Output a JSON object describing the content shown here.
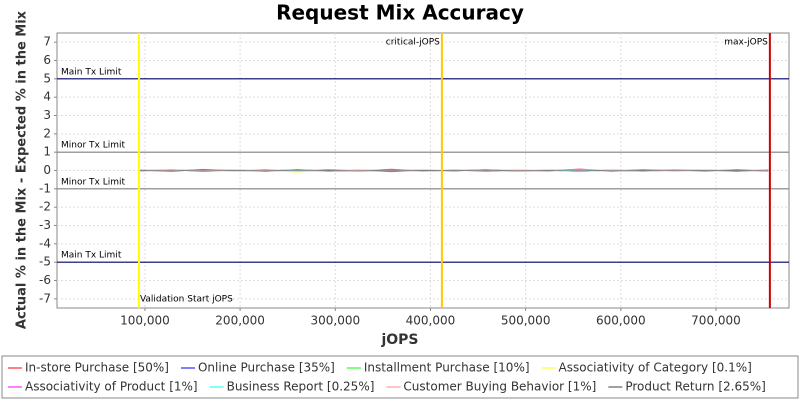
{
  "chart_data": {
    "type": "line",
    "title": "Request Mix Accuracy",
    "x_label": "jOPS",
    "y_label": "Actual % in the Mix - Expected % in the Mix",
    "xlim": [
      7600,
      776700
    ],
    "ylim": [
      -7.5,
      7.5
    ],
    "xticks": [
      {
        "value": 100000,
        "label": "100,000"
      },
      {
        "value": 200000,
        "label": "200,000"
      },
      {
        "value": 300000,
        "label": "300,000"
      },
      {
        "value": 400000,
        "label": "400,000"
      },
      {
        "value": 500000,
        "label": "500,000"
      },
      {
        "value": 600000,
        "label": "600,000"
      },
      {
        "value": 700000,
        "label": "700,000"
      }
    ],
    "yticks": [
      -7,
      -6,
      -5,
      -4,
      -3,
      -2,
      -1,
      0,
      1,
      2,
      3,
      4,
      5,
      6,
      7
    ],
    "grid": true,
    "hlines": [
      {
        "label": "Main Tx Limit",
        "value": 5,
        "color": "#000066"
      },
      {
        "label": "Minor Tx Limit",
        "value": 1,
        "color": "#808080"
      },
      {
        "label": "Minor Tx Limit",
        "value": -1,
        "color": "#808080"
      },
      {
        "label": "Main Tx Limit",
        "value": -5,
        "color": "#000066"
      }
    ],
    "vlines": [
      {
        "label": "Validation Start jOPS",
        "value": 93700,
        "color": "#ffff00"
      },
      {
        "label": "critical-jOPS",
        "value": 412000,
        "color": "#ffc800"
      },
      {
        "label": "max-jOPS",
        "value": 756600,
        "color": "#cc0000"
      }
    ],
    "x": [
      95000,
      128000,
      161000,
      194000,
      227000,
      260000,
      293000,
      326000,
      359000,
      392000,
      425000,
      458000,
      491000,
      524000,
      557000,
      590000,
      623000,
      656000,
      689000,
      722000,
      755000
    ],
    "series": [
      {
        "name": "In-store Purchase [50%]",
        "color": "#ff5555",
        "values": [
          0.02,
          -0.05,
          0.06,
          -0.03,
          0.04,
          -0.06,
          0.05,
          -0.02,
          0.07,
          -0.04,
          0.03,
          -0.05,
          0.02,
          -0.03,
          0.08,
          -0.04,
          0.05,
          -0.02,
          0.03,
          -0.05,
          0.04
        ]
      },
      {
        "name": "Online Purchase [35%]",
        "color": "#5555ff",
        "values": [
          -0.02,
          0.04,
          -0.05,
          0.03,
          -0.04,
          0.05,
          -0.04,
          0.02,
          -0.06,
          0.03,
          -0.02,
          0.04,
          -0.03,
          0.02,
          -0.06,
          0.03,
          -0.04,
          0.02,
          -0.03,
          0.04,
          -0.03
        ]
      },
      {
        "name": "Installment Purchase [10%]",
        "color": "#55ff55",
        "values": [
          0.01,
          0.02,
          -0.02,
          0.03,
          -0.01,
          0.02,
          -0.03,
          0.01,
          0.02,
          -0.02,
          0.01,
          0.03,
          -0.02,
          0.01,
          -0.02,
          0.02,
          -0.04,
          0.01,
          0.02,
          -0.01,
          0.01
        ]
      },
      {
        "name": "Associativity of Category [0.1%]",
        "color": "#ffff55",
        "values": [
          0.0,
          -0.01,
          0.01,
          -0.02,
          0.0,
          -0.08,
          0.01,
          0.0,
          -0.01,
          0.02,
          0.0,
          -0.01,
          0.01,
          0.0,
          -0.02,
          0.01,
          0.0,
          -0.01,
          0.01,
          0.0,
          -0.01
        ]
      },
      {
        "name": "Associativity of Product [1%]",
        "color": "#ff55ff",
        "values": [
          0.01,
          0.0,
          0.02,
          -0.01,
          0.01,
          0.0,
          -0.02,
          0.01,
          0.0,
          0.01,
          -0.01,
          0.02,
          0.0,
          -0.01,
          0.01,
          0.0,
          0.02,
          -0.01,
          0.0,
          0.01,
          0.0
        ]
      },
      {
        "name": "Business Report [0.25%]",
        "color": "#55ffff",
        "values": [
          0.0,
          0.01,
          -0.01,
          0.02,
          0.0,
          -0.02,
          0.01,
          0.0,
          -0.01,
          0.0,
          0.01,
          -0.01,
          0.0,
          0.02,
          -0.05,
          0.0,
          0.01,
          -0.01,
          0.0,
          0.01,
          -0.01
        ]
      },
      {
        "name": "Customer Buying Behavior [1%]",
        "color": "#ffafaf",
        "values": [
          -0.01,
          0.02,
          0.0,
          -0.02,
          0.01,
          0.03,
          -0.01,
          0.02,
          0.0,
          -0.02,
          0.01,
          0.0,
          0.02,
          -0.01,
          0.06,
          0.0,
          -0.02,
          0.01,
          0.0,
          -0.01,
          0.02
        ]
      },
      {
        "name": "Product Return [2.65%]",
        "color": "#808080",
        "values": [
          0.0,
          -0.02,
          0.03,
          0.0,
          -0.02,
          0.02,
          0.0,
          -0.03,
          0.02,
          0.0,
          -0.01,
          0.02,
          -0.02,
          0.0,
          0.03,
          -0.02,
          0.0,
          0.02,
          -0.01,
          0.0,
          -0.02
        ]
      }
    ]
  }
}
